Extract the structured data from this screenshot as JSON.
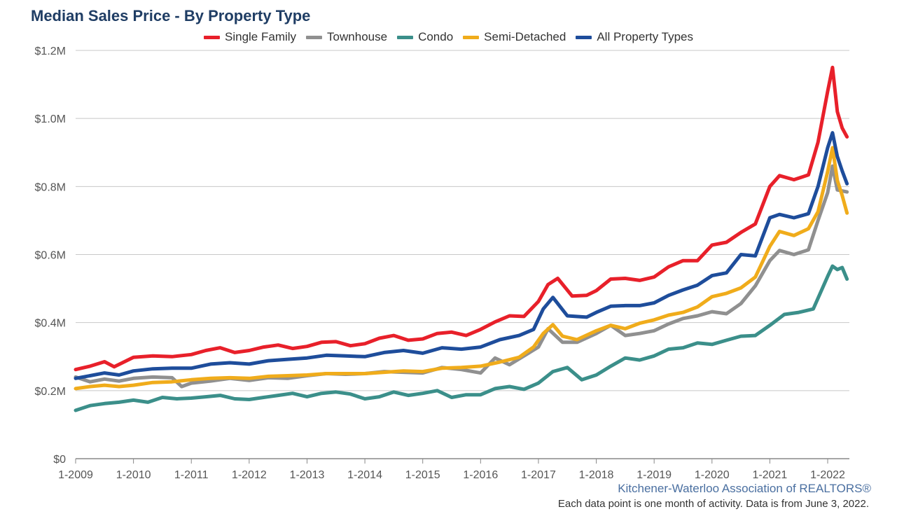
{
  "footer": {
    "organization": "Kitchener-Waterloo Association of REALTORS®",
    "note": "Each data point is one month of activity. Data is from June 3, 2022."
  },
  "chart_data": {
    "type": "line",
    "title": "Median Sales Price - By Property Type",
    "xlabel": "",
    "ylabel": "",
    "x_range": [
      "2009-01",
      "2022-05"
    ],
    "ylim": [
      0,
      1200000
    ],
    "y_ticks": [
      0,
      200000,
      400000,
      600000,
      800000,
      1000000,
      1200000
    ],
    "y_tick_labels": [
      "$0",
      "$0.2M",
      "$0.4M",
      "$0.6M",
      "$0.8M",
      "$1.0M",
      "$1.2M"
    ],
    "x_ticks": [
      "2009-01",
      "2010-01",
      "2011-01",
      "2012-01",
      "2013-01",
      "2014-01",
      "2015-01",
      "2016-01",
      "2017-01",
      "2018-01",
      "2019-01",
      "2020-01",
      "2021-01",
      "2022-01"
    ],
    "x_tick_labels": [
      "1-2009",
      "1-2010",
      "1-2011",
      "1-2012",
      "1-2013",
      "1-2014",
      "1-2015",
      "1-2016",
      "1-2017",
      "1-2018",
      "1-2019",
      "1-2020",
      "1-2021",
      "1-2022"
    ],
    "grid": "horizontal",
    "legend_position": "top-center",
    "series": [
      {
        "name": "Single Family",
        "color": "#e8202a",
        "points": [
          [
            "2009-01",
            262000
          ],
          [
            "2009-04",
            272000
          ],
          [
            "2009-07",
            285000
          ],
          [
            "2009-09",
            270000
          ],
          [
            "2010-01",
            298000
          ],
          [
            "2010-05",
            302000
          ],
          [
            "2010-09",
            300000
          ],
          [
            "2011-01",
            306000
          ],
          [
            "2011-04",
            318000
          ],
          [
            "2011-07",
            326000
          ],
          [
            "2011-10",
            312000
          ],
          [
            "2012-01",
            318000
          ],
          [
            "2012-04",
            328000
          ],
          [
            "2012-07",
            334000
          ],
          [
            "2012-10",
            324000
          ],
          [
            "2013-01",
            330000
          ],
          [
            "2013-04",
            342000
          ],
          [
            "2013-07",
            344000
          ],
          [
            "2013-10",
            332000
          ],
          [
            "2014-01",
            338000
          ],
          [
            "2014-04",
            354000
          ],
          [
            "2014-07",
            362000
          ],
          [
            "2014-10",
            348000
          ],
          [
            "2015-01",
            352000
          ],
          [
            "2015-04",
            368000
          ],
          [
            "2015-07",
            372000
          ],
          [
            "2015-10",
            362000
          ],
          [
            "2016-01",
            380000
          ],
          [
            "2016-04",
            402000
          ],
          [
            "2016-07",
            420000
          ],
          [
            "2016-10",
            418000
          ],
          [
            "2017-01",
            462000
          ],
          [
            "2017-03",
            512000
          ],
          [
            "2017-05",
            530000
          ],
          [
            "2017-08",
            478000
          ],
          [
            "2017-11",
            480000
          ],
          [
            "2018-01",
            494000
          ],
          [
            "2018-04",
            528000
          ],
          [
            "2018-07",
            530000
          ],
          [
            "2018-10",
            524000
          ],
          [
            "2019-01",
            534000
          ],
          [
            "2019-04",
            564000
          ],
          [
            "2019-07",
            582000
          ],
          [
            "2019-10",
            582000
          ],
          [
            "2020-01",
            628000
          ],
          [
            "2020-04",
            636000
          ],
          [
            "2020-07",
            665000
          ],
          [
            "2020-10",
            690000
          ],
          [
            "2021-01",
            800000
          ],
          [
            "2021-03",
            832000
          ],
          [
            "2021-06",
            820000
          ],
          [
            "2021-09",
            834000
          ],
          [
            "2021-11",
            930000
          ],
          [
            "2022-01",
            1080000
          ],
          [
            "2022-02",
            1150000
          ],
          [
            "2022-03",
            1020000
          ],
          [
            "2022-04",
            972000
          ],
          [
            "2022-05",
            946000
          ]
        ]
      },
      {
        "name": "Townhouse",
        "color": "#909090",
        "points": [
          [
            "2009-01",
            240000
          ],
          [
            "2009-04",
            226000
          ],
          [
            "2009-07",
            234000
          ],
          [
            "2009-10",
            228000
          ],
          [
            "2010-01",
            236000
          ],
          [
            "2010-05",
            240000
          ],
          [
            "2010-09",
            238000
          ],
          [
            "2010-11",
            212000
          ],
          [
            "2011-01",
            222000
          ],
          [
            "2011-05",
            228000
          ],
          [
            "2011-09",
            236000
          ],
          [
            "2012-01",
            230000
          ],
          [
            "2012-05",
            238000
          ],
          [
            "2012-09",
            236000
          ],
          [
            "2013-01",
            244000
          ],
          [
            "2013-05",
            250000
          ],
          [
            "2013-09",
            248000
          ],
          [
            "2014-01",
            250000
          ],
          [
            "2014-05",
            256000
          ],
          [
            "2014-09",
            254000
          ],
          [
            "2015-01",
            252000
          ],
          [
            "2015-05",
            268000
          ],
          [
            "2015-09",
            262000
          ],
          [
            "2016-01",
            252000
          ],
          [
            "2016-04",
            296000
          ],
          [
            "2016-07",
            276000
          ],
          [
            "2016-10",
            302000
          ],
          [
            "2017-01",
            328000
          ],
          [
            "2017-03",
            382000
          ],
          [
            "2017-06",
            342000
          ],
          [
            "2017-09",
            342000
          ],
          [
            "2018-01",
            368000
          ],
          [
            "2018-04",
            392000
          ],
          [
            "2018-07",
            362000
          ],
          [
            "2018-10",
            368000
          ],
          [
            "2019-01",
            376000
          ],
          [
            "2019-04",
            396000
          ],
          [
            "2019-07",
            412000
          ],
          [
            "2019-10",
            420000
          ],
          [
            "2020-01",
            432000
          ],
          [
            "2020-04",
            426000
          ],
          [
            "2020-07",
            456000
          ],
          [
            "2020-10",
            508000
          ],
          [
            "2021-01",
            582000
          ],
          [
            "2021-03",
            612000
          ],
          [
            "2021-06",
            600000
          ],
          [
            "2021-09",
            614000
          ],
          [
            "2021-11",
            700000
          ],
          [
            "2022-01",
            782000
          ],
          [
            "2022-02",
            860000
          ],
          [
            "2022-03",
            790000
          ],
          [
            "2022-05",
            784000
          ]
        ]
      },
      {
        "name": "Condo",
        "color": "#3b8f8a",
        "points": [
          [
            "2009-01",
            142000
          ],
          [
            "2009-04",
            156000
          ],
          [
            "2009-07",
            162000
          ],
          [
            "2009-10",
            166000
          ],
          [
            "2010-01",
            172000
          ],
          [
            "2010-04",
            166000
          ],
          [
            "2010-07",
            180000
          ],
          [
            "2010-10",
            176000
          ],
          [
            "2011-01",
            178000
          ],
          [
            "2011-04",
            182000
          ],
          [
            "2011-07",
            186000
          ],
          [
            "2011-10",
            176000
          ],
          [
            "2012-01",
            174000
          ],
          [
            "2012-04",
            180000
          ],
          [
            "2012-07",
            186000
          ],
          [
            "2012-10",
            192000
          ],
          [
            "2013-01",
            182000
          ],
          [
            "2013-04",
            192000
          ],
          [
            "2013-07",
            196000
          ],
          [
            "2013-10",
            190000
          ],
          [
            "2014-01",
            176000
          ],
          [
            "2014-04",
            182000
          ],
          [
            "2014-07",
            196000
          ],
          [
            "2014-10",
            186000
          ],
          [
            "2015-01",
            192000
          ],
          [
            "2015-04",
            200000
          ],
          [
            "2015-07",
            180000
          ],
          [
            "2015-10",
            188000
          ],
          [
            "2016-01",
            188000
          ],
          [
            "2016-04",
            206000
          ],
          [
            "2016-07",
            212000
          ],
          [
            "2016-10",
            204000
          ],
          [
            "2017-01",
            222000
          ],
          [
            "2017-04",
            256000
          ],
          [
            "2017-07",
            268000
          ],
          [
            "2017-10",
            232000
          ],
          [
            "2018-01",
            246000
          ],
          [
            "2018-04",
            272000
          ],
          [
            "2018-07",
            296000
          ],
          [
            "2018-10",
            290000
          ],
          [
            "2019-01",
            302000
          ],
          [
            "2019-04",
            322000
          ],
          [
            "2019-07",
            326000
          ],
          [
            "2019-10",
            340000
          ],
          [
            "2020-01",
            336000
          ],
          [
            "2020-04",
            348000
          ],
          [
            "2020-07",
            360000
          ],
          [
            "2020-10",
            362000
          ],
          [
            "2021-01",
            392000
          ],
          [
            "2021-04",
            424000
          ],
          [
            "2021-07",
            430000
          ],
          [
            "2021-10",
            440000
          ],
          [
            "2022-01",
            536000
          ],
          [
            "2022-02",
            566000
          ],
          [
            "2022-03",
            556000
          ],
          [
            "2022-04",
            562000
          ],
          [
            "2022-05",
            528000
          ]
        ]
      },
      {
        "name": "Semi-Detached",
        "color": "#f0ac1b",
        "points": [
          [
            "2009-01",
            206000
          ],
          [
            "2009-04",
            212000
          ],
          [
            "2009-07",
            216000
          ],
          [
            "2009-10",
            212000
          ],
          [
            "2010-01",
            216000
          ],
          [
            "2010-05",
            224000
          ],
          [
            "2010-09",
            226000
          ],
          [
            "2011-01",
            232000
          ],
          [
            "2011-05",
            236000
          ],
          [
            "2011-09",
            238000
          ],
          [
            "2012-01",
            236000
          ],
          [
            "2012-05",
            242000
          ],
          [
            "2012-09",
            244000
          ],
          [
            "2013-01",
            246000
          ],
          [
            "2013-05",
            250000
          ],
          [
            "2013-09",
            250000
          ],
          [
            "2014-01",
            250000
          ],
          [
            "2014-05",
            254000
          ],
          [
            "2014-09",
            258000
          ],
          [
            "2015-01",
            256000
          ],
          [
            "2015-05",
            266000
          ],
          [
            "2015-09",
            268000
          ],
          [
            "2016-01",
            272000
          ],
          [
            "2016-05",
            284000
          ],
          [
            "2016-09",
            298000
          ],
          [
            "2016-12",
            328000
          ],
          [
            "2017-02",
            368000
          ],
          [
            "2017-04",
            394000
          ],
          [
            "2017-06",
            360000
          ],
          [
            "2017-09",
            350000
          ],
          [
            "2018-01",
            376000
          ],
          [
            "2018-04",
            392000
          ],
          [
            "2018-07",
            382000
          ],
          [
            "2018-10",
            398000
          ],
          [
            "2019-01",
            408000
          ],
          [
            "2019-04",
            422000
          ],
          [
            "2019-07",
            430000
          ],
          [
            "2019-10",
            446000
          ],
          [
            "2020-01",
            476000
          ],
          [
            "2020-04",
            486000
          ],
          [
            "2020-07",
            502000
          ],
          [
            "2020-10",
            534000
          ],
          [
            "2021-01",
            624000
          ],
          [
            "2021-03",
            668000
          ],
          [
            "2021-06",
            656000
          ],
          [
            "2021-09",
            676000
          ],
          [
            "2021-11",
            726000
          ],
          [
            "2022-01",
            844000
          ],
          [
            "2022-02",
            914000
          ],
          [
            "2022-03",
            818000
          ],
          [
            "2022-04",
            774000
          ],
          [
            "2022-05",
            722000
          ]
        ]
      },
      {
        "name": "All Property Types",
        "color": "#1e4d9b",
        "points": [
          [
            "2009-01",
            236000
          ],
          [
            "2009-04",
            244000
          ],
          [
            "2009-07",
            252000
          ],
          [
            "2009-10",
            246000
          ],
          [
            "2010-01",
            258000
          ],
          [
            "2010-05",
            264000
          ],
          [
            "2010-09",
            266000
          ],
          [
            "2011-01",
            266000
          ],
          [
            "2011-05",
            278000
          ],
          [
            "2011-09",
            282000
          ],
          [
            "2012-01",
            278000
          ],
          [
            "2012-05",
            288000
          ],
          [
            "2012-09",
            292000
          ],
          [
            "2013-01",
            296000
          ],
          [
            "2013-05",
            304000
          ],
          [
            "2013-09",
            302000
          ],
          [
            "2014-01",
            300000
          ],
          [
            "2014-05",
            312000
          ],
          [
            "2014-09",
            318000
          ],
          [
            "2015-01",
            310000
          ],
          [
            "2015-05",
            326000
          ],
          [
            "2015-09",
            322000
          ],
          [
            "2016-01",
            328000
          ],
          [
            "2016-05",
            350000
          ],
          [
            "2016-09",
            362000
          ],
          [
            "2016-12",
            380000
          ],
          [
            "2017-02",
            440000
          ],
          [
            "2017-04",
            474000
          ],
          [
            "2017-07",
            420000
          ],
          [
            "2017-11",
            416000
          ],
          [
            "2018-01",
            430000
          ],
          [
            "2018-04",
            448000
          ],
          [
            "2018-07",
            450000
          ],
          [
            "2018-10",
            450000
          ],
          [
            "2019-01",
            458000
          ],
          [
            "2019-04",
            480000
          ],
          [
            "2019-07",
            496000
          ],
          [
            "2019-10",
            510000
          ],
          [
            "2020-01",
            538000
          ],
          [
            "2020-04",
            546000
          ],
          [
            "2020-07",
            600000
          ],
          [
            "2020-10",
            596000
          ],
          [
            "2021-01",
            708000
          ],
          [
            "2021-03",
            718000
          ],
          [
            "2021-06",
            708000
          ],
          [
            "2021-09",
            720000
          ],
          [
            "2021-11",
            800000
          ],
          [
            "2022-01",
            914000
          ],
          [
            "2022-02",
            958000
          ],
          [
            "2022-03",
            888000
          ],
          [
            "2022-04",
            846000
          ],
          [
            "2022-05",
            808000
          ]
        ]
      }
    ]
  }
}
